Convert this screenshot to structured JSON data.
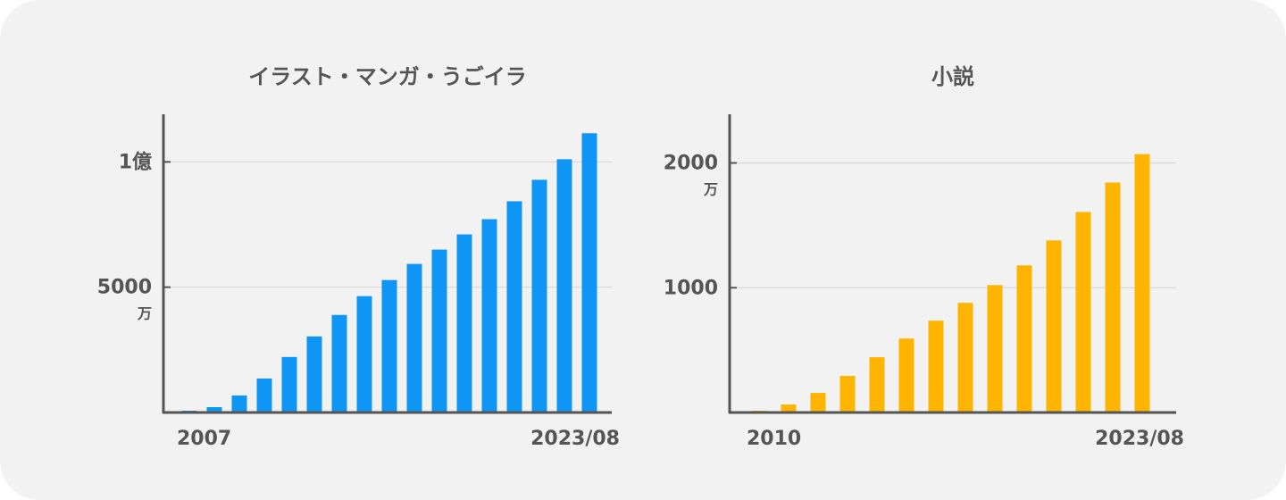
{
  "chart_data": [
    {
      "type": "bar",
      "title": "イラスト・マンガ・うごイラ",
      "categories": [
        "2007",
        null,
        null,
        null,
        null,
        null,
        null,
        null,
        null,
        null,
        null,
        null,
        null,
        null,
        null,
        null,
        "2023/08"
      ],
      "values": [
        71,
        214,
        679,
        1357,
        2214,
        3036,
        3893,
        4643,
        5286,
        5929,
        6500,
        7107,
        7714,
        8429,
        9286,
        10107,
        11143
      ],
      "color": "#0f96f5",
      "ylim": [
        0,
        11900
      ],
      "yticks": [
        {
          "value": 5000,
          "label": "5000\n万"
        },
        {
          "value": 10000,
          "label": "1億"
        }
      ],
      "grid": true
    },
    {
      "type": "bar",
      "title": "小説",
      "categories": [
        "2010",
        null,
        null,
        null,
        null,
        null,
        null,
        null,
        null,
        null,
        null,
        null,
        null,
        "2023/08"
      ],
      "values": [
        14,
        64,
        157,
        293,
        443,
        593,
        736,
        879,
        1021,
        1179,
        1379,
        1607,
        1843,
        2071
      ],
      "color": "#ffb400",
      "ylim": [
        0,
        2390
      ],
      "yticks": [
        1000,
        {
          "value": 2000,
          "label": "2000\n万"
        }
      ],
      "grid": true
    }
  ]
}
